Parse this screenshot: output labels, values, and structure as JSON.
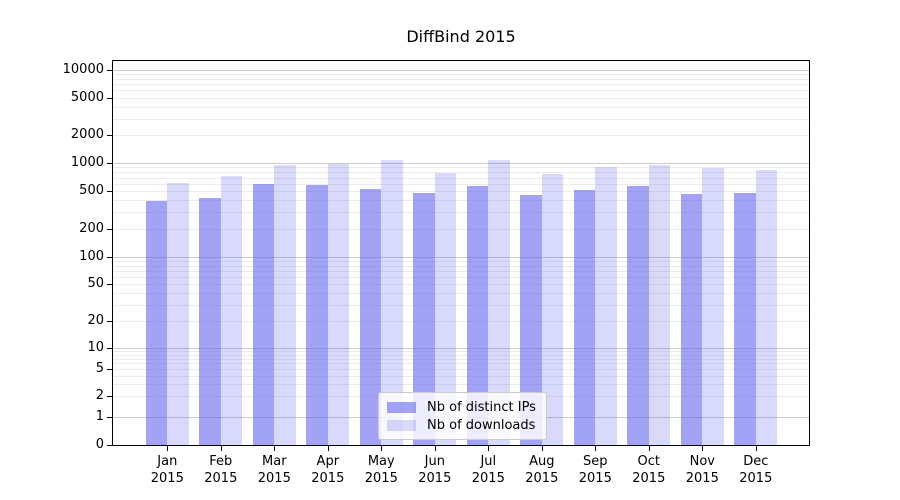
{
  "title": "DiffBind 2015",
  "chart_data": {
    "type": "bar",
    "title": "DiffBind 2015",
    "categories": [
      "Jan",
      "Feb",
      "Mar",
      "Apr",
      "May",
      "Jun",
      "Jul",
      "Aug",
      "Sep",
      "Oct",
      "Nov",
      "Dec"
    ],
    "category_year": "2015",
    "series": [
      {
        "name": "Nb of distinct IPs",
        "color": "#6666F099",
        "values": [
          390,
          425,
          605,
          585,
          530,
          475,
          570,
          455,
          515,
          570,
          470,
          480
        ]
      },
      {
        "name": "Nb of downloads",
        "color": "#6666F040",
        "values": [
          620,
          735,
          965,
          975,
          1085,
          775,
          1080,
          770,
          905,
          955,
          885,
          850
        ]
      }
    ],
    "yscale": "symlog",
    "ylim": [
      0,
      13000
    ],
    "y_ticks": [
      0,
      1,
      2,
      5,
      10,
      20,
      50,
      100,
      200,
      500,
      1000,
      2000,
      5000,
      10000
    ],
    "grid": {
      "orientation": "horizontal",
      "major_ticks": [
        1,
        10,
        100,
        1000,
        10000
      ],
      "major_color": "#cbcbcb",
      "minor_color": "#ececec"
    },
    "legend": {
      "position": "inside-bottom-center"
    },
    "xlabel": "",
    "ylabel": ""
  }
}
